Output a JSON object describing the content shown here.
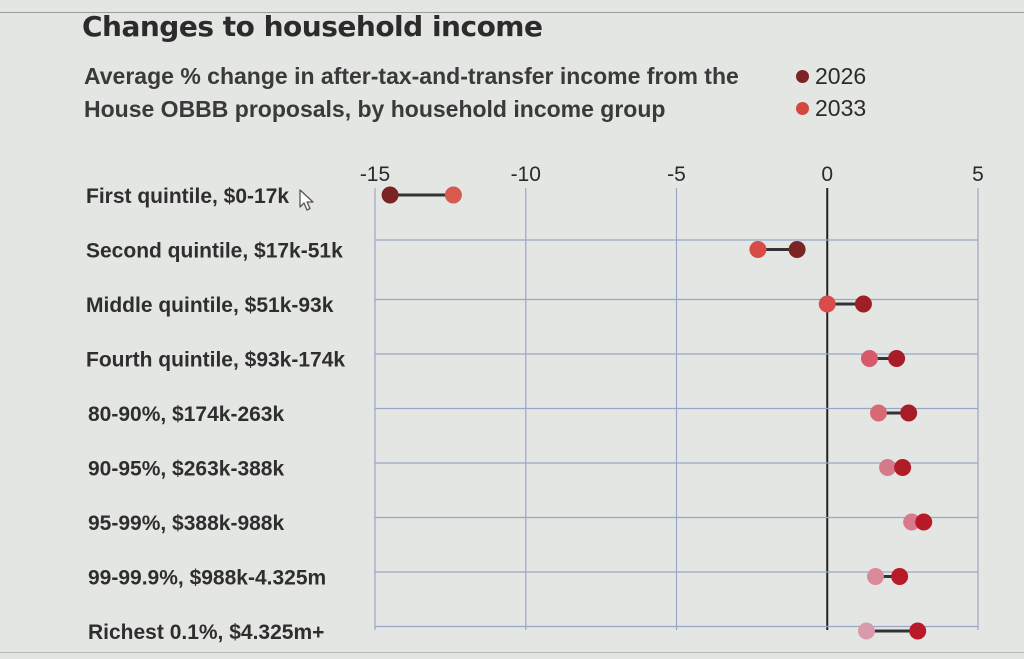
{
  "title": "Changes to household income",
  "subtitle": "Average % change in after-tax-and-transfer income from the House OBBB proposals, by household income group",
  "legend": [
    {
      "label": "2026",
      "color": "#7a2424"
    },
    {
      "label": "2033",
      "color": "#d4473d"
    }
  ],
  "chart_data": {
    "type": "dumbbell",
    "title": "Changes to household income",
    "subtitle": "Average % change in after-tax-and-transfer income from the House OBBB proposals, by household income group",
    "xlim": [
      -15,
      5
    ],
    "xticks": [
      -15,
      -10,
      -5,
      0,
      5
    ],
    "grid": true,
    "legend_position": "top-right",
    "categories": [
      "First quintile, $0-17k",
      "Second quintile, $17k-51k",
      "Middle quintile, $51k-93k",
      "Fourth quintile, $93k-174k",
      "80-90%, $174k-263k",
      "90-95%, $263k-388k",
      "95-99%, $388k-988k",
      "99-99.9%, $988k-4.325m",
      "Richest 0.1%, $4.325m+"
    ],
    "series": [
      {
        "name": "2026",
        "color": "#7a2424",
        "values": [
          -14.5,
          -1.0,
          1.2,
          2.3,
          2.7,
          2.5,
          3.2,
          2.4,
          3.0
        ]
      },
      {
        "name": "2033",
        "color": "#d4473d",
        "values": [
          -12.4,
          -2.3,
          0.0,
          1.4,
          1.7,
          2.0,
          2.8,
          1.6,
          1.3
        ]
      }
    ],
    "point_colors_2033": [
      "#d65a4e",
      "#d94c46",
      "#d94c4c",
      "#d65a6a",
      "#d66a72",
      "#d47a88",
      "#d87a8a",
      "#d98a9a",
      "#d99aac"
    ],
    "point_colors_2026": [
      "#7a2424",
      "#7a2424",
      "#a01e26",
      "#a81c28",
      "#a81c28",
      "#b01c28",
      "#b81a28",
      "#b81a28",
      "#b81a28"
    ]
  }
}
